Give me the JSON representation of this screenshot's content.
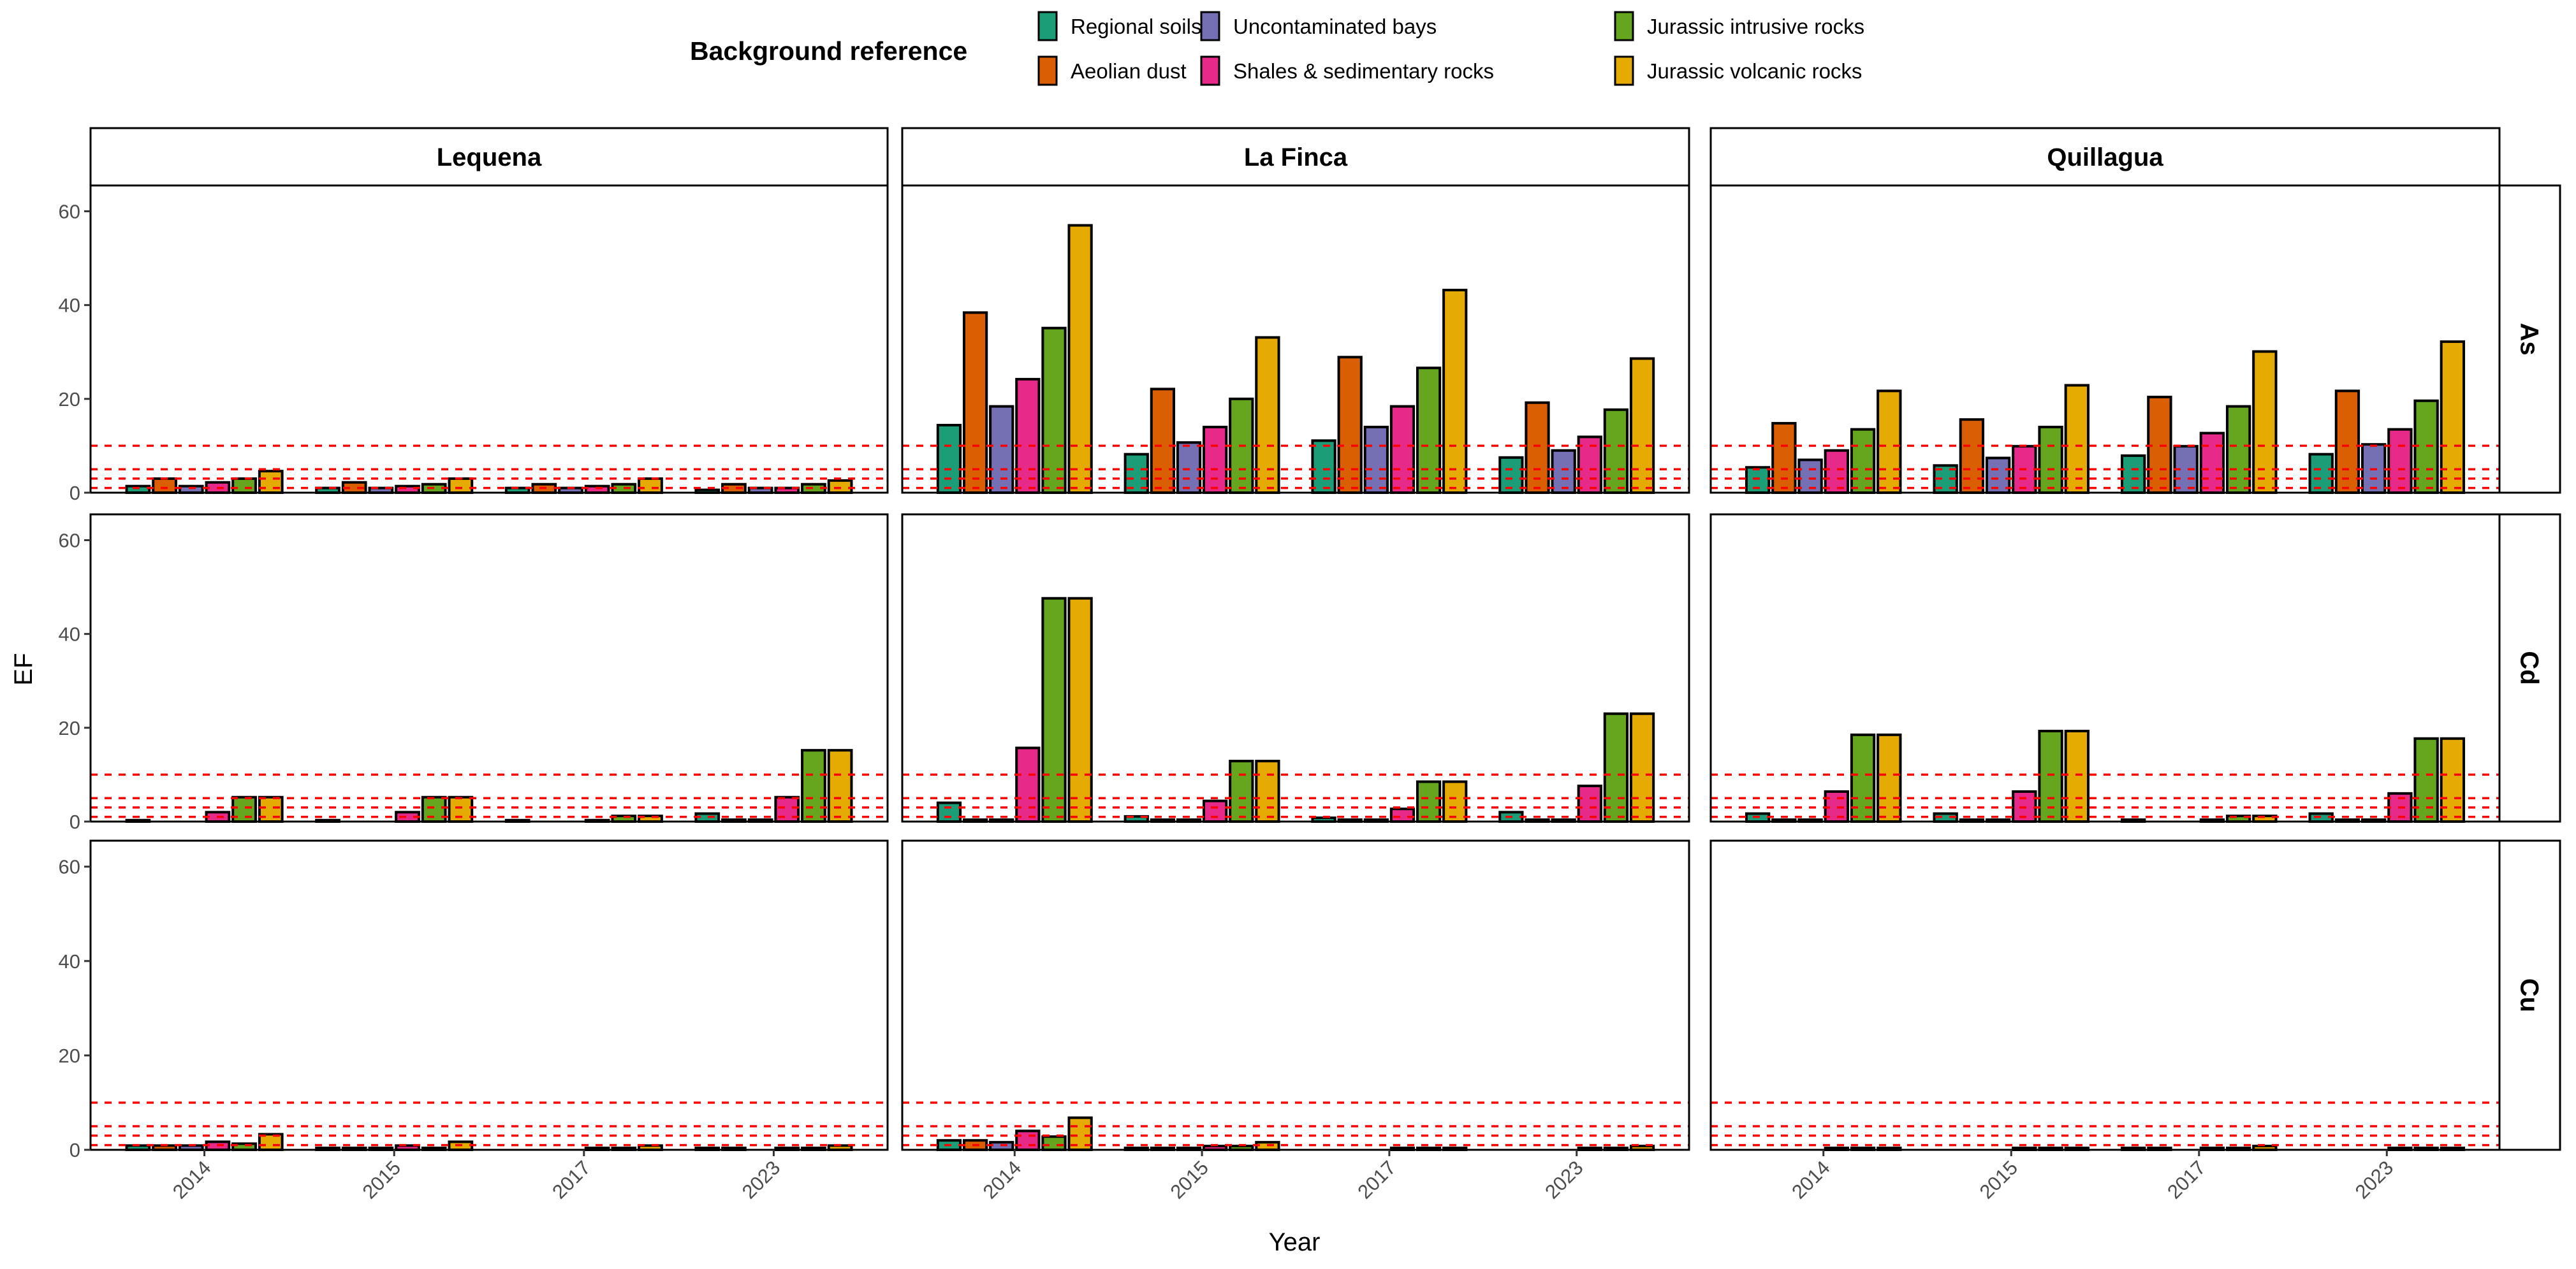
{
  "legend": {
    "title": "Background reference",
    "entries": [
      {
        "label": "Regional soils",
        "color": "#1B9E77"
      },
      {
        "label": "Aeolian dust",
        "color": "#D95F02"
      },
      {
        "label": "Uncontaminated bays",
        "color": "#7570B3"
      },
      {
        "label": "Shales & sedimentary rocks",
        "color": "#E7298A"
      },
      {
        "label": "Jurassic intrusive rocks",
        "color": "#66A61E"
      },
      {
        "label": "Jurassic volcanic rocks",
        "color": "#E6AB02"
      }
    ]
  },
  "chart_data": {
    "type": "bar",
    "facet_columns": [
      "Lequena",
      "La Finca",
      "Quillagua"
    ],
    "facet_rows": [
      "As",
      "Cd",
      "Cu"
    ],
    "categories": [
      "2014",
      "2015",
      "2017",
      "2023"
    ],
    "series": [
      "Regional soils",
      "Aeolian dust",
      "Uncontaminated bays",
      "Shales & sedimentary rocks",
      "Jurassic intrusive rocks",
      "Jurassic volcanic rocks"
    ],
    "xlabel": "Year",
    "ylabel": "EF",
    "ylim": [
      0,
      65.5
    ],
    "yticks": [
      "0",
      "20",
      "40",
      "60"
    ],
    "reference_lines": [
      1,
      3,
      5,
      10
    ],
    "reference_line_color": "#FF0000",
    "legend_position": "top",
    "panels": [
      {
        "row": "As",
        "col": "Lequena",
        "values_by_year": [
          [
            1.4,
            3.0,
            1.4,
            2.2,
            3.0,
            4.6
          ],
          [
            1.0,
            2.2,
            1.0,
            1.4,
            1.8,
            3.0
          ],
          [
            1.0,
            1.8,
            1.0,
            1.4,
            1.8,
            3.0
          ],
          [
            0.6,
            1.8,
            1.0,
            1.0,
            1.8,
            2.6
          ]
        ]
      },
      {
        "row": "As",
        "col": "La Finca",
        "values_by_year": [
          [
            14.4,
            38.4,
            18.4,
            24.2,
            35.1,
            57.0
          ],
          [
            8.2,
            22.1,
            10.7,
            14.0,
            20.0,
            33.1
          ],
          [
            11.1,
            28.9,
            14.0,
            18.4,
            26.6,
            43.2
          ],
          [
            7.5,
            19.2,
            9.0,
            11.9,
            17.7,
            28.6
          ]
        ]
      },
      {
        "row": "As",
        "col": "Quillagua",
        "values_by_year": [
          [
            5.4,
            14.8,
            7.0,
            9.0,
            13.5,
            21.7
          ],
          [
            5.8,
            15.6,
            7.4,
            9.9,
            14.0,
            22.9
          ],
          [
            7.9,
            20.4,
            9.9,
            12.7,
            18.4,
            30.1
          ],
          [
            8.2,
            21.7,
            10.3,
            13.5,
            19.6,
            32.2
          ]
        ]
      },
      {
        "row": "Cd",
        "col": "Lequena",
        "values_by_year": [
          [
            0.3,
            0,
            0,
            2.0,
            5.2,
            5.2
          ],
          [
            0.3,
            0,
            0,
            2.0,
            5.2,
            5.2
          ],
          [
            0.3,
            0,
            0,
            0.3,
            1.2,
            1.2
          ],
          [
            1.7,
            0.4,
            0.4,
            5.2,
            15.2,
            15.2
          ]
        ]
      },
      {
        "row": "Cd",
        "col": "La Finca",
        "values_by_year": [
          [
            4.0,
            0.4,
            0.4,
            15.7,
            47.6,
            47.6
          ],
          [
            1.1,
            0.4,
            0.4,
            4.4,
            12.9,
            12.9
          ],
          [
            0.8,
            0.4,
            0.4,
            2.7,
            8.5,
            8.5
          ],
          [
            2.0,
            0.4,
            0.4,
            7.6,
            23.0,
            23.0
          ]
        ]
      },
      {
        "row": "Cd",
        "col": "Quillagua",
        "values_by_year": [
          [
            1.7,
            0.4,
            0.4,
            6.4,
            18.5,
            18.5
          ],
          [
            1.7,
            0.4,
            0.4,
            6.4,
            19.3,
            19.3
          ],
          [
            0.4,
            0,
            0,
            0.4,
            1.2,
            1.2
          ],
          [
            1.7,
            0.4,
            0.4,
            6.0,
            17.7,
            17.7
          ]
        ]
      },
      {
        "row": "Cu",
        "col": "Lequena",
        "values_by_year": [
          [
            0.9,
            0.9,
            0.9,
            1.7,
            1.3,
            3.3
          ],
          [
            0.4,
            0.4,
            0.4,
            0.9,
            0.4,
            1.7
          ],
          [
            0,
            0,
            0,
            0.4,
            0.4,
            0.9
          ],
          [
            0.4,
            0.4,
            0,
            0.4,
            0.4,
            0.9
          ]
        ]
      },
      {
        "row": "Cu",
        "col": "La Finca",
        "values_by_year": [
          [
            2.0,
            2.0,
            1.6,
            4.0,
            2.8,
            6.8
          ],
          [
            0.4,
            0.4,
            0.4,
            0.8,
            0.8,
            1.6
          ],
          [
            0,
            0,
            0,
            0.4,
            0.4,
            0.4
          ],
          [
            0,
            0,
            0,
            0.4,
            0.4,
            0.8
          ]
        ]
      },
      {
        "row": "Cu",
        "col": "Quillagua",
        "values_by_year": [
          [
            0,
            0,
            0,
            0.4,
            0.4,
            0.4
          ],
          [
            0,
            0,
            0,
            0.4,
            0.4,
            0.4
          ],
          [
            0.4,
            0.4,
            0,
            0.4,
            0.4,
            0.8
          ],
          [
            0,
            0,
            0,
            0.4,
            0.4,
            0.4
          ]
        ]
      }
    ]
  }
}
